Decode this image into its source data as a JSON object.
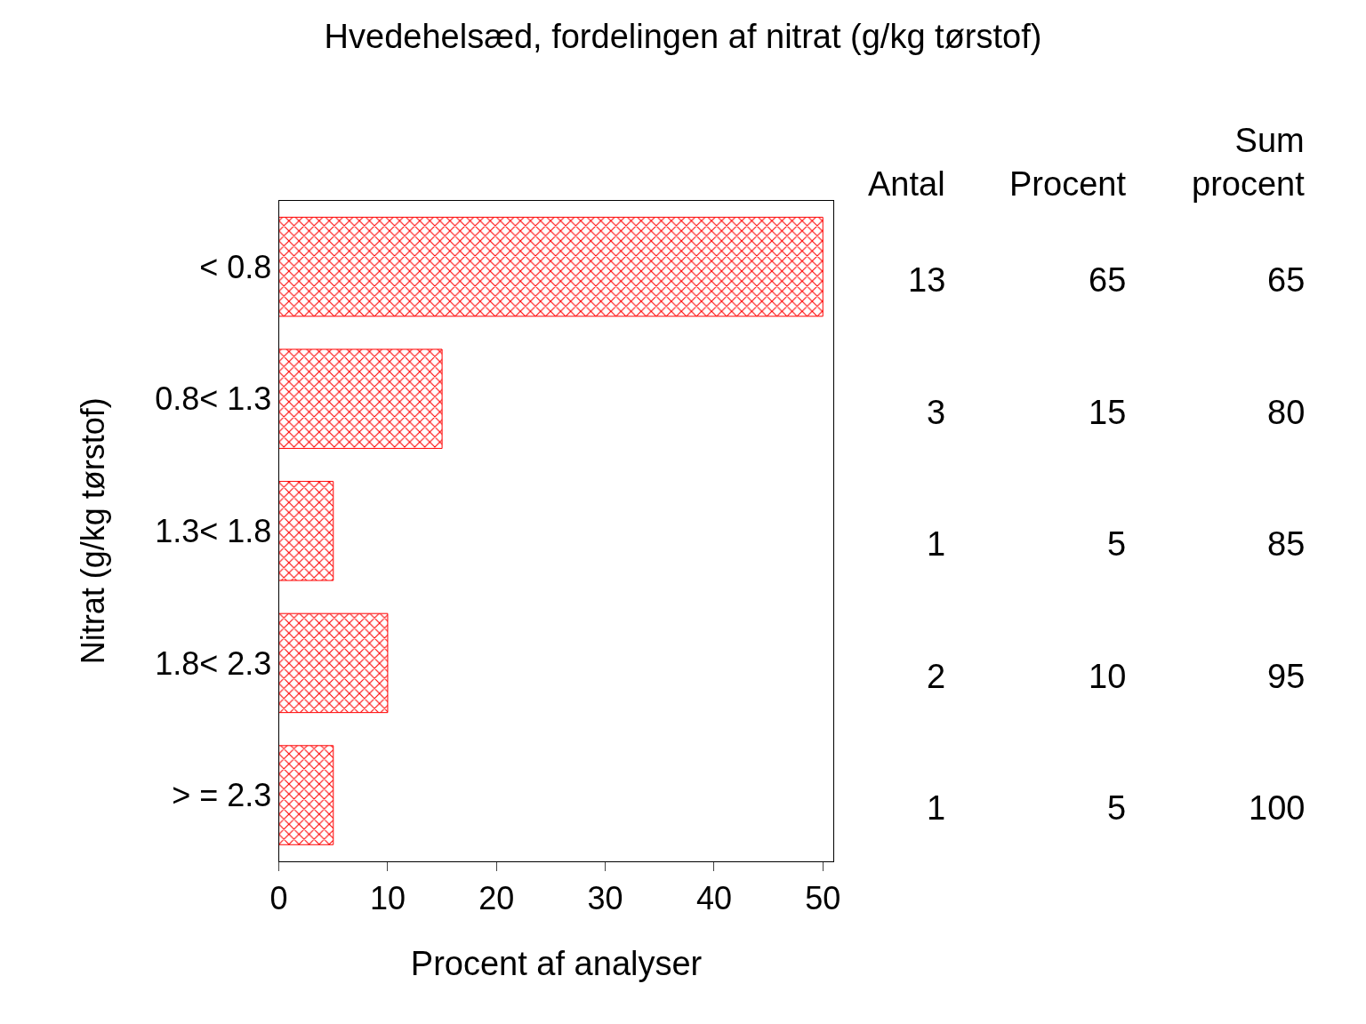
{
  "chart_data": {
    "type": "bar",
    "orientation": "horizontal",
    "title": "Hvedehelsæd, fordelingen af nitrat (g/kg tørstof)",
    "xlabel": "Procent af analyser",
    "ylabel": "Nitrat (g/kg tørstof)",
    "categories": [
      "< 0.8",
      "0.8< 1.3",
      "1.3< 1.8",
      "1.8< 2.3",
      "> = 2.3"
    ],
    "values": [
      50,
      15,
      5,
      10,
      5
    ],
    "color": "#ff0000",
    "xlim": [
      0,
      51
    ],
    "xticks": [
      0,
      10,
      20,
      30,
      40,
      50
    ],
    "annotations": [
      "Antal",
      "Procent",
      "Sum\nprocent",
      "13",
      "65",
      "65",
      "3",
      "15",
      "80",
      "1",
      "5",
      "85",
      "2",
      "10",
      "95",
      "1",
      "5",
      "100"
    ]
  }
}
